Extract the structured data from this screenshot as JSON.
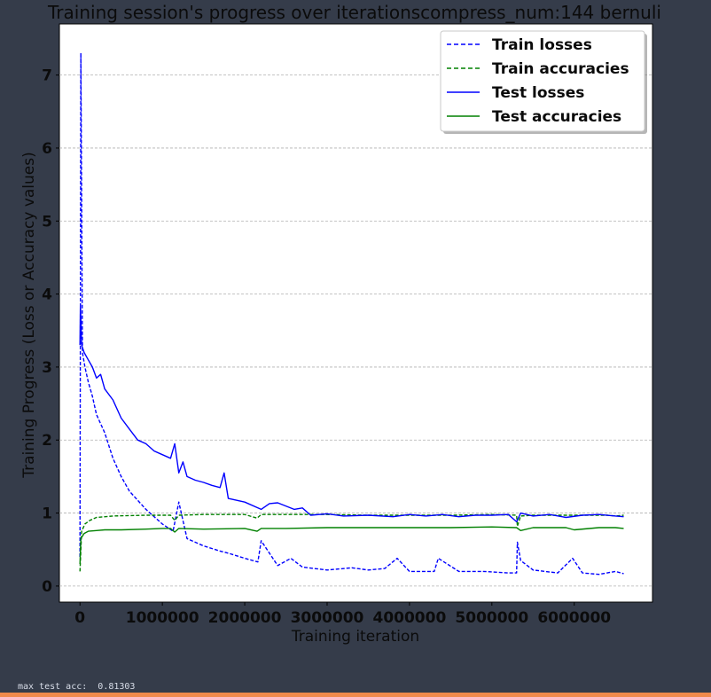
{
  "chart_data": {
    "type": "line",
    "title": "Training session's progress over iterationscompress_num:144 bernuli",
    "xlabel": "Training iteration",
    "ylabel": "Training Progress (Loss or Accuracy values)",
    "xlim": [
      -250000,
      6950000
    ],
    "ylim": [
      -0.22,
      7.7
    ],
    "xticks": [
      0,
      1000000,
      2000000,
      3000000,
      4000000,
      5000000,
      6000000
    ],
    "xtick_labels": [
      "0",
      "1000000",
      "2000000",
      "3000000",
      "4000000",
      "5000000",
      "6000000"
    ],
    "yticks": [
      0,
      1,
      2,
      3,
      4,
      5,
      6,
      7
    ],
    "ytick_labels": [
      "0",
      "1",
      "2",
      "3",
      "4",
      "5",
      "6",
      "7"
    ],
    "grid": "horizontal dashed",
    "legend_position": "top-right",
    "series": [
      {
        "name": "Train losses",
        "color": "#0000ff",
        "style": "dashed",
        "x": [
          0,
          10000,
          30000,
          60000,
          100000,
          150000,
          200000,
          300000,
          400000,
          500000,
          600000,
          800000,
          1000000,
          1130000,
          1200000,
          1300000,
          1500000,
          1700000,
          1800000,
          2000000,
          2160000,
          2200000,
          2400000,
          2560000,
          2700000,
          3000000,
          3300000,
          3500000,
          3700000,
          3850000,
          4000000,
          4300000,
          4350000,
          4600000,
          4900000,
          5200000,
          5300000,
          5310000,
          5350000,
          5500000,
          5800000,
          5980000,
          6100000,
          6300000,
          6500000,
          6600000
        ],
        "y": [
          0.4,
          7.3,
          3.2,
          3.0,
          2.8,
          2.6,
          2.35,
          2.1,
          1.75,
          1.5,
          1.3,
          1.05,
          0.85,
          0.75,
          1.15,
          0.65,
          0.55,
          0.48,
          0.45,
          0.38,
          0.33,
          0.62,
          0.28,
          0.38,
          0.26,
          0.22,
          0.25,
          0.22,
          0.24,
          0.38,
          0.2,
          0.2,
          0.38,
          0.2,
          0.2,
          0.18,
          0.18,
          0.6,
          0.35,
          0.22,
          0.18,
          0.38,
          0.18,
          0.16,
          0.2,
          0.17
        ]
      },
      {
        "name": "Train accuracies",
        "color": "#008000",
        "style": "dashed",
        "x": [
          0,
          20000,
          60000,
          120000,
          200000,
          400000,
          800000,
          1100000,
          1150000,
          1200000,
          1500000,
          2000000,
          2150000,
          2200000,
          2500000,
          3000000,
          3500000,
          4000000,
          4500000,
          5000000,
          5300000,
          5310000,
          5350000,
          5500000,
          6000000,
          6400000,
          6500000,
          6600000
        ],
        "y": [
          0.2,
          0.75,
          0.85,
          0.9,
          0.94,
          0.96,
          0.97,
          0.97,
          0.9,
          0.97,
          0.98,
          0.98,
          0.93,
          0.98,
          0.98,
          0.98,
          0.97,
          0.97,
          0.97,
          0.98,
          0.97,
          0.82,
          0.96,
          0.97,
          0.97,
          0.97,
          0.96,
          0.97
        ]
      },
      {
        "name": "Test losses",
        "color": "#0000ff",
        "style": "solid",
        "x": [
          0,
          5000,
          20000,
          50000,
          100000,
          150000,
          200000,
          250000,
          300000,
          400000,
          500000,
          600000,
          700000,
          800000,
          900000,
          1000000,
          1100000,
          1150000,
          1200000,
          1250000,
          1300000,
          1400000,
          1500000,
          1600000,
          1700000,
          1750000,
          1800000,
          2000000,
          2200000,
          2300000,
          2400000,
          2600000,
          2700000,
          2800000,
          3000000,
          3200000,
          3500000,
          3800000,
          4000000,
          4200000,
          4400000,
          4600000,
          4800000,
          5000000,
          5200000,
          5300000,
          5350000,
          5500000,
          5700000,
          5900000,
          6100000,
          6300000,
          6500000,
          6600000
        ],
        "y": [
          3.3,
          3.85,
          3.3,
          3.2,
          3.1,
          3.0,
          2.85,
          2.9,
          2.7,
          2.55,
          2.3,
          2.15,
          2.0,
          1.95,
          1.85,
          1.8,
          1.75,
          1.95,
          1.55,
          1.7,
          1.5,
          1.45,
          1.42,
          1.38,
          1.35,
          1.55,
          1.2,
          1.15,
          1.05,
          1.13,
          1.14,
          1.05,
          1.07,
          0.97,
          0.99,
          0.96,
          0.97,
          0.95,
          0.98,
          0.96,
          0.98,
          0.95,
          0.97,
          0.97,
          0.98,
          0.88,
          1.0,
          0.96,
          0.98,
          0.94,
          0.97,
          0.98,
          0.96,
          0.95
        ]
      },
      {
        "name": "Test accuracies",
        "color": "#008000",
        "style": "solid",
        "x": [
          0,
          10000,
          50000,
          100000,
          200000,
          300000,
          500000,
          800000,
          1000000,
          1100000,
          1150000,
          1200000,
          1500000,
          2000000,
          2150000,
          2200000,
          2500000,
          3000000,
          3500000,
          4000000,
          4500000,
          5000000,
          5300000,
          5350000,
          5500000,
          5900000,
          6000000,
          6300000,
          6500000,
          6600000
        ],
        "y": [
          0.3,
          0.65,
          0.72,
          0.75,
          0.76,
          0.77,
          0.77,
          0.78,
          0.79,
          0.79,
          0.74,
          0.79,
          0.78,
          0.79,
          0.75,
          0.79,
          0.79,
          0.8,
          0.8,
          0.8,
          0.8,
          0.81,
          0.8,
          0.76,
          0.8,
          0.8,
          0.77,
          0.8,
          0.8,
          0.79
        ]
      }
    ]
  },
  "footer": {
    "text": "max test acc:  0.81303",
    "accent_color": "#f08a4b",
    "background_color": "#353c4a"
  }
}
